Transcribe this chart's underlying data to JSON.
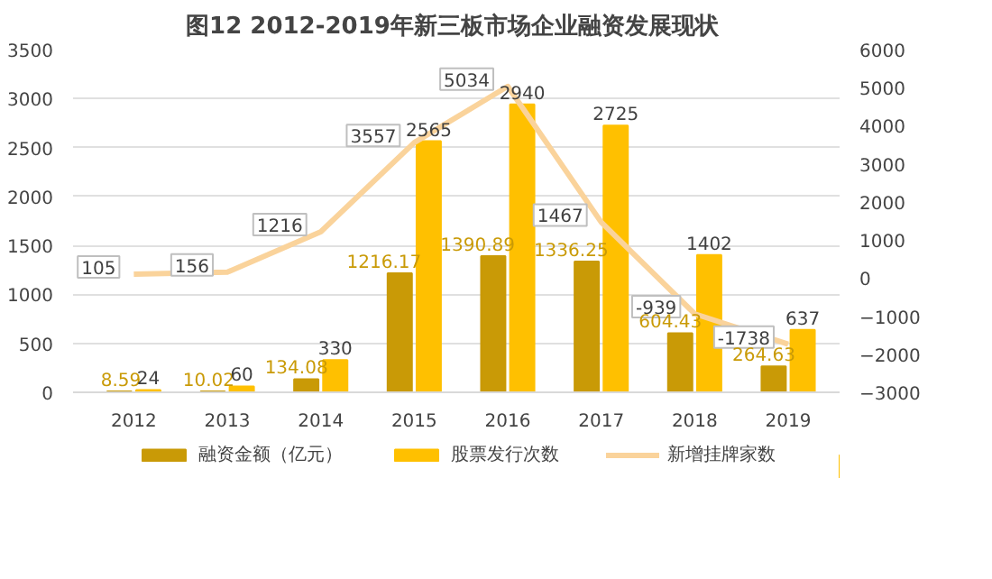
{
  "chart_data": {
    "type": "bar",
    "title": "图12  2012-2019年新三板市场企业融资发展现状",
    "categories": [
      "2012",
      "2013",
      "2014",
      "2015",
      "2016",
      "2017",
      "2018",
      "2019"
    ],
    "series": [
      {
        "name": "融资金额（亿元）",
        "color": "#c99a06",
        "values": [
          8.59,
          10.02,
          134.08,
          1216.17,
          1390.89,
          1336.25,
          604.43,
          264.63
        ]
      },
      {
        "name": "股票发行次数",
        "color": "#ffc000",
        "values": [
          24,
          60,
          330,
          2565,
          2940,
          2725,
          1402,
          637
        ]
      },
      {
        "name": "新增挂牌家数",
        "type": "line",
        "axis": "y2",
        "color": "#fad39b",
        "values": [
          105,
          156,
          1216,
          3557,
          5034,
          1467,
          -939,
          -1738
        ]
      }
    ],
    "ylim": [
      0,
      3500
    ],
    "yticks": [
      0,
      500,
      1000,
      1500,
      2000,
      2500,
      3000,
      3500
    ],
    "y2lim": [
      -3000,
      6000
    ],
    "y2ticks": [
      -3000,
      -2000,
      -1000,
      0,
      1000,
      2000,
      3000,
      4000,
      5000,
      6000
    ],
    "grid": "y",
    "legend": "bottom",
    "data_labels": true
  }
}
